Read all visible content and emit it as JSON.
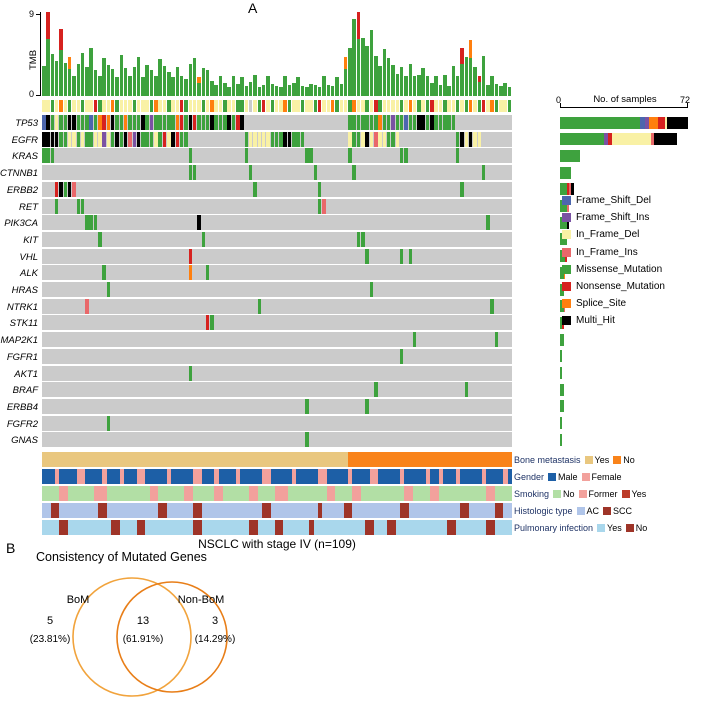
{
  "panelA": {
    "label": "A"
  },
  "panelB": {
    "label": "B",
    "title": "Consistency of Mutated Genes"
  },
  "mutation_colors": {
    "Frame_Shift_Del": "#4C66AE",
    "Frame_Shift_Ins": "#7A52A3",
    "In_Frame_Del": "#F9F1A5",
    "In_Frame_Ins": "#E9686A",
    "Missense_Mutation": "#3EA23E",
    "Nonsense_Mutation": "#D6221F",
    "Splice_Site": "#FF7F0E",
    "Multi_Hit": "#000000",
    "none": "#CBCBCB"
  },
  "legend_order": [
    "Frame_Shift_Del",
    "Frame_Shift_Ins",
    "In_Frame_Del",
    "In_Frame_Ins",
    "Missense_Mutation",
    "Nonsense_Mutation",
    "Splice_Site",
    "Multi_Hit"
  ],
  "chart_data": [
    {
      "type": "bar",
      "title": "TMB per sample",
      "ylabel": "TMB",
      "y_max_label": "9",
      "y_min_label": "0",
      "ylim": [
        0,
        9
      ],
      "n_samples": 109,
      "values": [
        3.2,
        9,
        4.5,
        3.8,
        7.2,
        3.5,
        4.2,
        2.1,
        3.4,
        4.6,
        3.1,
        5.2,
        2.8,
        2.2,
        4.1,
        3.3,
        2.9,
        2.0,
        4.4,
        3.0,
        2.2,
        3.1,
        4.2,
        2.0,
        3.3,
        2.8,
        2.1,
        4.0,
        3.2,
        2.6,
        2.0,
        3.1,
        2.2,
        1.8,
        3.4,
        4.1,
        2.0,
        3.0,
        2.8,
        1.6,
        1.2,
        2.1,
        1.4,
        1.0,
        2.2,
        1.3,
        2.0,
        1.1,
        1.5,
        2.3,
        1.0,
        1.2,
        2.1,
        1.3,
        1.1,
        1.0,
        2.2,
        1.2,
        1.4,
        2.0,
        1.1,
        1.0,
        1.3,
        1.2,
        1.0,
        2.1,
        1.2,
        1.1,
        2.0,
        1.3,
        4.2,
        5.1,
        8.3,
        9.0,
        6.2,
        5.4,
        7.1,
        4.3,
        3.2,
        5.0,
        4.1,
        3.3,
        2.4,
        3.1,
        2.2,
        3.4,
        2.1,
        2.3,
        3.0,
        2.2,
        1.4,
        2.1,
        1.2,
        2.3,
        1.1,
        3.2,
        2.2,
        5.1,
        4.2,
        6.0,
        3.1,
        2.2,
        4.3,
        1.2,
        2.1,
        1.3,
        1.1,
        1.4,
        1.0
      ],
      "red_accent_bars": [
        1,
        4,
        73,
        97,
        101
      ],
      "orange_accent_bars": [
        6,
        36,
        70,
        99
      ]
    },
    {
      "type": "heatmap",
      "subtype": "oncoprint",
      "title": "Mutation landscape",
      "caption": "NSCLC with stage IV (n=109)",
      "n_samples": 109,
      "genes": [
        "TP53",
        "EGFR",
        "KRAS",
        "CTNNB1",
        "ERBB2",
        "RET",
        "PIK3CA",
        "KIT",
        "VHL",
        "ALK",
        "HRAS",
        "NTRK1",
        "STK11",
        "MAP2K1",
        "FGFR1",
        "AKT1",
        "BRAF",
        "ERBB4",
        "FGFR2",
        "GNAS"
      ],
      "gene_mutation_counts": [
        {
          "gene": "TP53",
          "total": 72,
          "by_type": {
            "Missense_Mutation": 45,
            "Multi_Hit": 12,
            "Splice_Site": 5,
            "Nonsense_Mutation": 4,
            "Frame_Shift_Del": 3,
            "Frame_Shift_Ins": 2,
            "In_Frame_Del": 1
          }
        },
        {
          "gene": "EGFR",
          "total": 66,
          "by_type": {
            "Missense_Mutation": 25,
            "In_Frame_Del": 22,
            "Multi_Hit": 13,
            "In_Frame_Ins": 2,
            "Frame_Shift_Ins": 2,
            "Nonsense_Mutation": 2
          }
        },
        {
          "gene": "KRAS",
          "total": 11,
          "by_type": {
            "Missense_Mutation": 11
          }
        },
        {
          "gene": "CTNNB1",
          "total": 6,
          "by_type": {
            "Missense_Mutation": 6
          }
        },
        {
          "gene": "ERBB2",
          "total": 8,
          "by_type": {
            "Missense_Mutation": 4,
            "Multi_Hit": 2,
            "Nonsense_Mutation": 1,
            "In_Frame_Ins": 1
          }
        },
        {
          "gene": "RET",
          "total": 5,
          "by_type": {
            "Missense_Mutation": 4,
            "In_Frame_Ins": 1
          }
        },
        {
          "gene": "PIK3CA",
          "total": 5,
          "by_type": {
            "Missense_Mutation": 4,
            "Multi_Hit": 1
          }
        },
        {
          "gene": "KIT",
          "total": 4,
          "by_type": {
            "Missense_Mutation": 4
          }
        },
        {
          "gene": "VHL",
          "total": 4,
          "by_type": {
            "Missense_Mutation": 3,
            "Nonsense_Mutation": 1
          }
        },
        {
          "gene": "ALK",
          "total": 3,
          "by_type": {
            "Missense_Mutation": 2,
            "Splice_Site": 1
          }
        },
        {
          "gene": "HRAS",
          "total": 2,
          "by_type": {
            "Missense_Mutation": 2
          }
        },
        {
          "gene": "NTRK1",
          "total": 3,
          "by_type": {
            "Missense_Mutation": 2,
            "In_Frame_Ins": 1
          }
        },
        {
          "gene": "STK11",
          "total": 2,
          "by_type": {
            "Missense_Mutation": 1,
            "Nonsense_Mutation": 1
          }
        },
        {
          "gene": "MAP2K1",
          "total": 2,
          "by_type": {
            "Missense_Mutation": 2
          }
        },
        {
          "gene": "FGFR1",
          "total": 1,
          "by_type": {
            "Missense_Mutation": 1
          }
        },
        {
          "gene": "AKT1",
          "total": 1,
          "by_type": {
            "Missense_Mutation": 1
          }
        },
        {
          "gene": "BRAF",
          "total": 2,
          "by_type": {
            "Missense_Mutation": 2
          }
        },
        {
          "gene": "ERBB4",
          "total": 2,
          "by_type": {
            "Missense_Mutation": 2
          }
        },
        {
          "gene": "FGFR2",
          "total": 1,
          "by_type": {
            "Missense_Mutation": 1
          }
        },
        {
          "gene": "GNAS",
          "total": 1,
          "by_type": {
            "Missense_Mutation": 1
          }
        }
      ],
      "top_strip_pattern": "yygyoygyygyyrgyyogyyygyyygoyygyyrgyyygyoyygyyggyxygrygyyogyygyygryyogyygoyygyrgyyyygyoygygryygyygygoygryogyyg",
      "strip_code_map": {
        "y": "In_Frame_Del",
        "g": "Missense_Mutation",
        "o": "Splice_Site",
        "r": "Nonsense_Mutation",
        "b": "Frame_Shift_Del",
        "k": "Multi_Hit",
        "x": "none"
      },
      "clinical_annotations": [
        {
          "name": "Bone metastasis",
          "entries": [
            {
              "code": "Y",
              "label": "Yes",
              "color": "#E9C77F"
            },
            {
              "code": "N",
              "label": "No",
              "color": "#F9831A"
            }
          ],
          "pattern": "YYYYYYYYYYYYYYYYYYYYYYYYYYYYYYYYYYYYYYYYYYYYYYYYYYYYYYYYYYYYYYYYYYYYYYYNNNNNNNNNNNNNNNNNNNNNNNNNNNNNNNNNNNNNN"
        },
        {
          "name": "Gender",
          "entries": [
            {
              "code": "M",
              "label": "Male",
              "color": "#1D5FA6"
            },
            {
              "code": "F",
              "label": "Female",
              "color": "#F2A19C"
            }
          ],
          "pattern": "MMMFMMMMFFMMMMFMMMFMMMFFMMMMMFMMMMMFFMMMFMMMMFMMMMMFFMMMMMFMMMMMFFMMMMMFMMMMFFMMMMMFMMMMMFMMFMMMFMMMMMFMMMMFM"
        },
        {
          "name": "Smoking",
          "entries": [
            {
              "code": "N",
              "label": "No",
              "color": "#B2DFA5"
            },
            {
              "code": "F",
              "label": "Former",
              "color": "#F2A19C"
            },
            {
              "code": "Y",
              "label": "Yes",
              "color": "#BC3C29"
            }
          ],
          "pattern": "NNNNFFNNNNNNFFFNNNNNNNNNNFFNNNNNNFFNNNNNFFNNNNNNFFNNNNFFFNNNNNNNNNFFNNNNFFNNNNNNNNNNFFNNNNFFNNNNNNNNNNNFFNNNN"
        },
        {
          "name": "Histologic type",
          "entries": [
            {
              "code": "A",
              "label": "AC",
              "color": "#B0C5E9"
            },
            {
              "code": "S",
              "label": "SCC",
              "color": "#9E3428"
            }
          ],
          "pattern": "AASSAAAAAAAAASSAAAAAAAAAAAASSAAAAAASSAAAAAAAAAAAAAASSAAAAAAAAAAASAAAAASSAAAAAAAAAAASSAAAAAAAAAAAASSAAAAAASSAA"
        },
        {
          "name": "Pulmonary infection",
          "entries": [
            {
              "code": "Y",
              "label": "Yes",
              "color": "#A9D7EC"
            },
            {
              "code": "N",
              "label": "No",
              "color": "#9E3428"
            }
          ],
          "pattern": "YYYYNNYYYYYYYYYYNNYYYYNNYYYYYYYYYYYNNYYYYYYYYYYYNNYYYYNNYYYYYYNYYYYYYYYYYYYNNYYYNNYYYYYYYYYYYYNNYYYYYYYNNYYYY"
        }
      ]
    },
    {
      "type": "bar",
      "orientation": "horizontal",
      "title": "No. of samples",
      "x_min_label": "0",
      "x_max_label": "72",
      "xlim": [
        0,
        72
      ],
      "categories": [
        "TP53",
        "EGFR",
        "KRAS",
        "CTNNB1",
        "ERBB2",
        "RET",
        "PIK3CA",
        "KIT",
        "VHL",
        "ALK",
        "HRAS",
        "NTRK1",
        "STK11",
        "MAP2K1",
        "FGFR1",
        "AKT1",
        "BRAF",
        "ERBB4",
        "FGFR2",
        "GNAS"
      ],
      "values": [
        72,
        66,
        11,
        6,
        8,
        5,
        5,
        4,
        4,
        3,
        2,
        3,
        2,
        2,
        1,
        1,
        2,
        2,
        1,
        1
      ]
    },
    {
      "type": "venn",
      "title": "Consistency of Mutated Genes",
      "sets": [
        "BoM",
        "Non-BoM"
      ],
      "left_label": "BoM",
      "right_label": "Non-BoM",
      "left_count": "5",
      "left_pct": "(23.81%)",
      "center_count": "13",
      "center_pct": "(61.91%)",
      "right_count": "3",
      "right_pct": "(14.29%)",
      "values": {
        "BoM_only": 5,
        "intersection": 13,
        "NonBoM_only": 3
      },
      "left_circle_color": "#F1A33C",
      "right_circle_color": "#E87E18"
    }
  ]
}
